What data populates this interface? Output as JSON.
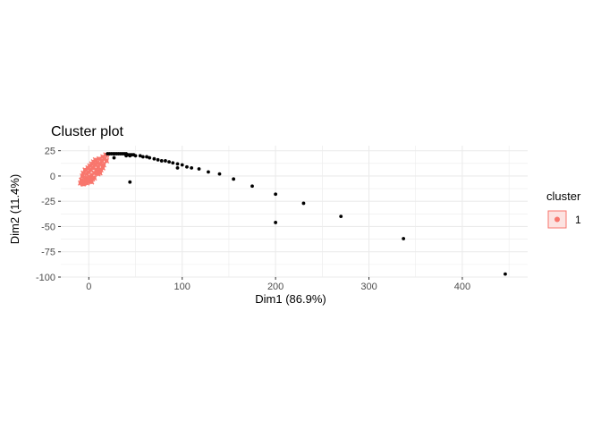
{
  "chart_data": {
    "type": "scatter",
    "title": "Cluster plot",
    "xlabel": "Dim1 (86.9%)",
    "ylabel": "Dim2 (11.4%)",
    "xlim": [
      -30,
      470
    ],
    "ylim": [
      -100,
      30
    ],
    "x_ticks": [
      0,
      100,
      200,
      300,
      400
    ],
    "y_ticks": [
      25,
      0,
      -25,
      -50,
      -75,
      -100
    ],
    "x_tick_labels": [
      "0",
      "100",
      "200",
      "300",
      "400"
    ],
    "y_tick_labels": [
      "25",
      "0",
      "-25",
      "-50",
      "-75",
      "-100"
    ],
    "grid": true,
    "legend": {
      "title": "cluster",
      "entries": [
        "1"
      ],
      "position": "right"
    },
    "colors": {
      "cluster_1": "#F8766D",
      "hull_fill": "#FCE3E1",
      "points": "#000000",
      "grid": "#EBEBEB",
      "axis_text": "#4D4D4D"
    },
    "hull": [
      [
        -10,
        -8
      ],
      [
        -8,
        1
      ],
      [
        -3,
        8
      ],
      [
        3,
        13
      ],
      [
        10,
        17
      ],
      [
        17,
        20
      ],
      [
        22,
        22
      ],
      [
        20,
        16
      ],
      [
        13,
        8
      ],
      [
        7,
        1
      ],
      [
        2,
        -6
      ],
      [
        -3,
        -9
      ],
      [
        -8,
        -10
      ]
    ],
    "cluster_points": [
      [
        -9,
        -7
      ],
      [
        -8,
        -4
      ],
      [
        -7,
        0
      ],
      [
        -6,
        3
      ],
      [
        -5,
        -6
      ],
      [
        -4,
        6
      ],
      [
        -3,
        -2
      ],
      [
        -2,
        2
      ],
      [
        -1,
        8
      ],
      [
        0,
        -5
      ],
      [
        0,
        4
      ],
      [
        1,
        10
      ],
      [
        1,
        -1
      ],
      [
        2,
        6
      ],
      [
        3,
        12
      ],
      [
        3,
        1
      ],
      [
        4,
        -3
      ],
      [
        5,
        8
      ],
      [
        5,
        14
      ],
      [
        6,
        3
      ],
      [
        7,
        11
      ],
      [
        7,
        16
      ],
      [
        8,
        6
      ],
      [
        9,
        13
      ],
      [
        10,
        2
      ],
      [
        10,
        9
      ],
      [
        11,
        17
      ],
      [
        12,
        12
      ],
      [
        13,
        6
      ],
      [
        14,
        15
      ],
      [
        15,
        19
      ],
      [
        16,
        11
      ],
      [
        17,
        17
      ],
      [
        18,
        21
      ],
      [
        19,
        15
      ],
      [
        -6,
        -8
      ],
      [
        -2,
        -7
      ],
      [
        3,
        -6
      ],
      [
        6,
        -2
      ],
      [
        9,
        5
      ],
      [
        -4,
        -4
      ],
      [
        -1,
        -3
      ],
      [
        2,
        -2
      ],
      [
        12,
        3
      ],
      [
        15,
        8
      ]
    ],
    "points": [
      [
        20,
        22
      ],
      [
        22,
        22
      ],
      [
        24,
        22
      ],
      [
        26,
        22
      ],
      [
        28,
        22
      ],
      [
        30,
        22
      ],
      [
        32,
        22
      ],
      [
        34,
        22
      ],
      [
        36,
        22
      ],
      [
        38,
        22
      ],
      [
        40,
        22
      ],
      [
        42,
        21
      ],
      [
        44,
        21
      ],
      [
        46,
        21
      ],
      [
        48,
        21
      ],
      [
        27,
        18
      ],
      [
        40,
        20
      ],
      [
        44,
        20
      ],
      [
        50,
        20
      ],
      [
        55,
        20
      ],
      [
        58,
        19
      ],
      [
        62,
        19
      ],
      [
        65,
        18
      ],
      [
        70,
        17
      ],
      [
        74,
        16
      ],
      [
        78,
        15
      ],
      [
        82,
        15
      ],
      [
        86,
        14
      ],
      [
        90,
        13
      ],
      [
        95,
        12
      ],
      [
        100,
        11
      ],
      [
        105,
        9
      ],
      [
        110,
        8
      ],
      [
        118,
        7
      ],
      [
        128,
        4
      ],
      [
        140,
        2
      ],
      [
        155,
        -3
      ],
      [
        175,
        -10
      ],
      [
        200,
        -18
      ],
      [
        200,
        -46
      ],
      [
        230,
        -27
      ],
      [
        270,
        -40
      ],
      [
        337,
        -62
      ],
      [
        446,
        -97
      ],
      [
        44,
        -6
      ],
      [
        95,
        8
      ]
    ]
  }
}
